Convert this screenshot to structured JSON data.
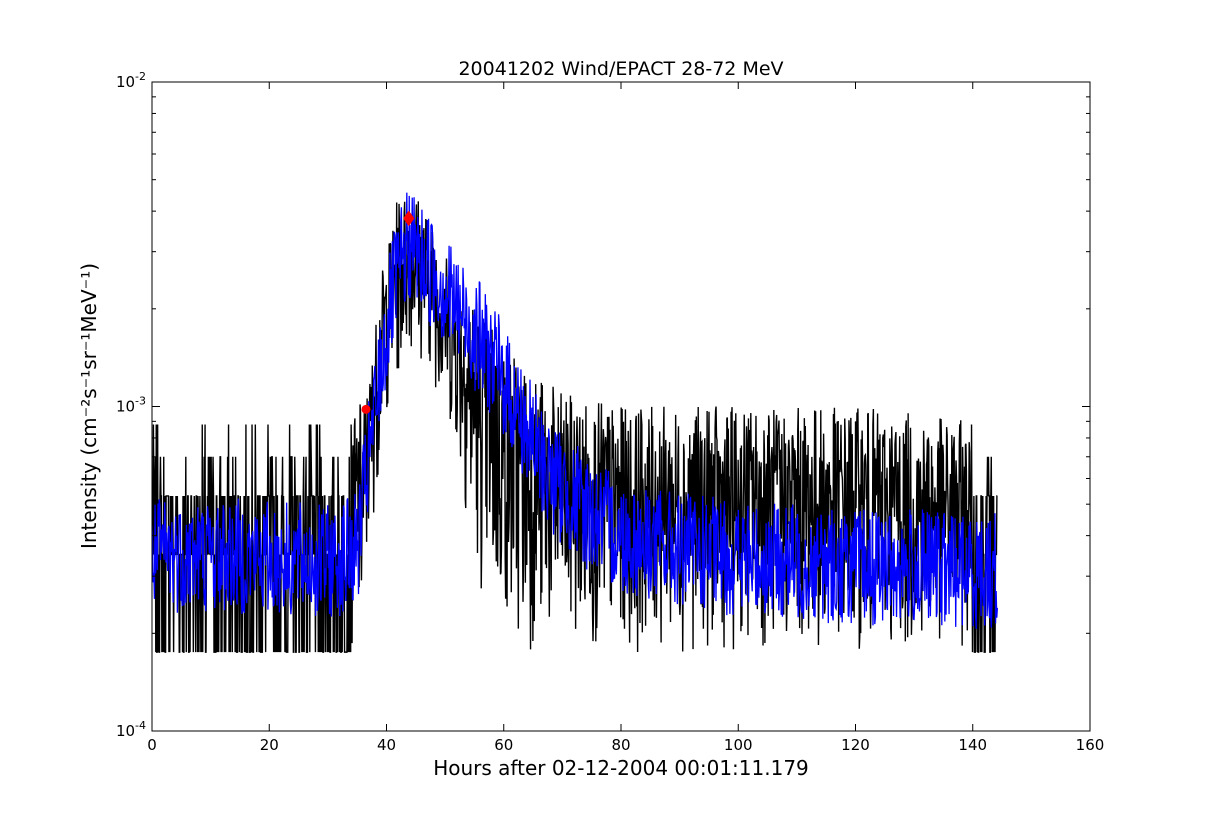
{
  "chart_data": {
    "type": "line",
    "title": "20041202 Wind/EPACT 28-72 MeV",
    "xlabel": "Hours after 02-12-2004 00:01:11.179",
    "ylabel": "Intensity (cm⁻²s⁻¹sr⁻¹MeV⁻¹)",
    "xlim": [
      0,
      160
    ],
    "ylim": [
      0.0001,
      0.01
    ],
    "yscale": "log",
    "grid": false,
    "x_ticks": [
      0,
      20,
      40,
      60,
      80,
      100,
      120,
      140,
      160
    ],
    "x_tick_labels": [
      "0",
      "20",
      "40",
      "60",
      "80",
      "100",
      "120",
      "140",
      "160"
    ],
    "y_ticks": [
      0.0001,
      0.001,
      0.01
    ],
    "y_tick_labels": [
      {
        "base": "10",
        "exp": "-4"
      },
      {
        "base": "10",
        "exp": "-3"
      },
      {
        "base": "10",
        "exp": "-2"
      }
    ],
    "series": [
      {
        "role": "raw",
        "color": "#000000",
        "x_range": [
          0,
          144.2
        ],
        "levels": [
          0.000175,
          0.00035,
          0.00053,
          0.0007,
          0.00088
        ],
        "envelope_upper": [
          [
            0,
            0.00088
          ],
          [
            20,
            0.00088
          ],
          [
            30,
            0.00088
          ],
          [
            34,
            0.0009
          ],
          [
            37,
            0.0012
          ],
          [
            39,
            0.0025
          ],
          [
            42,
            0.0045
          ],
          [
            45,
            0.0047
          ],
          [
            50,
            0.003
          ],
          [
            55,
            0.0022
          ],
          [
            60,
            0.0017
          ],
          [
            65,
            0.0013
          ],
          [
            70,
            0.0011
          ],
          [
            80,
            0.001
          ],
          [
            100,
            0.001
          ],
          [
            120,
            0.001
          ],
          [
            144,
            0.00088
          ]
        ],
        "envelope_lower": [
          [
            0,
            0.000175
          ],
          [
            36,
            0.000175
          ],
          [
            37,
            0.00035
          ],
          [
            38,
            0.0005
          ],
          [
            40,
            0.0009
          ],
          [
            44,
            0.0015
          ],
          [
            48,
            0.0012
          ],
          [
            52,
            0.0007
          ],
          [
            55,
            0.0003
          ],
          [
            58,
            0.00022
          ],
          [
            62,
            0.000175
          ],
          [
            144,
            0.000175
          ]
        ]
      },
      {
        "role": "smoothed",
        "color": "#0000ff",
        "trend": [
          [
            0,
            0.00035
          ],
          [
            10,
            0.00035
          ],
          [
            20,
            0.00034
          ],
          [
            30,
            0.00033
          ],
          [
            35,
            0.00036
          ],
          [
            37,
            0.0007
          ],
          [
            39,
            0.0013
          ],
          [
            41,
            0.0022
          ],
          [
            43,
            0.0029
          ],
          [
            44,
            0.0032
          ],
          [
            46,
            0.0028
          ],
          [
            48,
            0.0026
          ],
          [
            50,
            0.0023
          ],
          [
            52,
            0.002
          ],
          [
            55,
            0.0017
          ],
          [
            58,
            0.0014
          ],
          [
            60,
            0.0012
          ],
          [
            63,
            0.00092
          ],
          [
            66,
            0.0007
          ],
          [
            70,
            0.00055
          ],
          [
            75,
            0.00046
          ],
          [
            80,
            0.0004
          ],
          [
            90,
            0.00036
          ],
          [
            100,
            0.00034
          ],
          [
            110,
            0.00033
          ],
          [
            120,
            0.00032
          ],
          [
            130,
            0.00032
          ],
          [
            144,
            0.00031
          ]
        ]
      }
    ],
    "markers": [
      {
        "x": 36.5,
        "y": 0.00098,
        "color": "#ff0000",
        "shape": "circle"
      },
      {
        "x": 43.8,
        "y": 0.0038,
        "color": "#ff0000",
        "shape": "diamond"
      }
    ]
  }
}
